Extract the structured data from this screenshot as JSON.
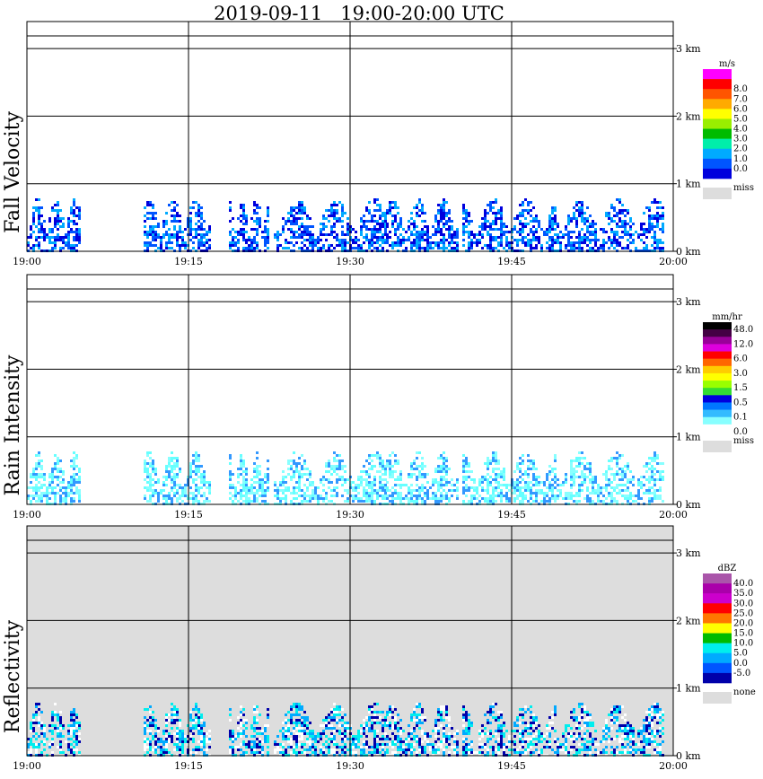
{
  "title": "2019-09-11   19:00-20:00 UTC",
  "chart_data": [
    {
      "type": "heatmap",
      "ylabel": "Fall Velocity",
      "unit": "m/s",
      "x_ticks": [
        "19:00",
        "19:15",
        "19:30",
        "19:45",
        "20:00"
      ],
      "y_ticks": [
        "0 km",
        "1 km",
        "2 km",
        "3 km"
      ],
      "ylim_km": [
        0,
        3.4
      ],
      "colorbar": [
        {
          "color": "#ff00ff",
          "label": ""
        },
        {
          "color": "#ff0000",
          "label": "8.0"
        },
        {
          "color": "#ff5500",
          "label": "7.0"
        },
        {
          "color": "#ffaa00",
          "label": "6.0"
        },
        {
          "color": "#ffff00",
          "label": "5.0"
        },
        {
          "color": "#99ee00",
          "label": "4.0"
        },
        {
          "color": "#00bb00",
          "label": "3.0"
        },
        {
          "color": "#00eeaa",
          "label": "2.0"
        },
        {
          "color": "#00aaff",
          "label": "1.0"
        },
        {
          "color": "#0055ff",
          "label": "0.0"
        },
        {
          "color": "#0000dd",
          "label": ""
        }
      ],
      "missing": {
        "color": "#dddddd",
        "label": "miss"
      },
      "background": "#ffffff",
      "precip_top_km": 1.0,
      "data_values": [
        0.5,
        1.5,
        1.0,
        0.5,
        2.0,
        1.0
      ],
      "cell_colors": [
        "#0000dd",
        "#0055ff",
        "#00aaff"
      ]
    },
    {
      "type": "heatmap",
      "ylabel": "Rain Intensity",
      "unit": "mm/hr",
      "x_ticks": [
        "19:00",
        "19:15",
        "19:30",
        "19:45",
        "20:00"
      ],
      "y_ticks": [
        "0 km",
        "1 km",
        "2 km",
        "3 km"
      ],
      "ylim_km": [
        0,
        3.4
      ],
      "colorbar": [
        {
          "color": "#000000",
          "label": "48.0"
        },
        {
          "color": "#440044",
          "label": ""
        },
        {
          "color": "#990099",
          "label": "12.0"
        },
        {
          "color": "#dd00dd",
          "label": ""
        },
        {
          "color": "#ff0000",
          "label": "6.0"
        },
        {
          "color": "#ff6600",
          "label": ""
        },
        {
          "color": "#ffcc00",
          "label": "3.0"
        },
        {
          "color": "#ffff00",
          "label": ""
        },
        {
          "color": "#99ff00",
          "label": "1.5"
        },
        {
          "color": "#33dd33",
          "label": ""
        },
        {
          "color": "#0000dd",
          "label": "0.5"
        },
        {
          "color": "#0077ff",
          "label": ""
        },
        {
          "color": "#33bbff",
          "label": "0.1"
        },
        {
          "color": "#88ffff",
          "label": ""
        },
        {
          "color": "#ffffff",
          "label": "0.0"
        }
      ],
      "missing": {
        "color": "#dddddd",
        "label": "miss"
      },
      "background": "#ffffff",
      "precip_top_km": 1.0,
      "data_values": [
        0.1,
        0.1,
        0.5,
        0.1,
        0.5,
        0.1
      ],
      "cell_colors": [
        "#66ffff",
        "#88ffff",
        "#3399ff"
      ]
    },
    {
      "type": "heatmap",
      "ylabel": "Reflectivity",
      "unit": "dBZ",
      "x_ticks": [
        "19:00",
        "19:15",
        "19:30",
        "19:45",
        "20:00"
      ],
      "y_ticks": [
        "0 km",
        "1 km",
        "2 km",
        "3 km"
      ],
      "ylim_km": [
        0,
        3.4
      ],
      "colorbar": [
        {
          "color": "#aa55aa",
          "label": "40.0"
        },
        {
          "color": "#aa00aa",
          "label": "35.0"
        },
        {
          "color": "#cc00cc",
          "label": "30.0"
        },
        {
          "color": "#ff0000",
          "label": "25.0"
        },
        {
          "color": "#ff7700",
          "label": "20.0"
        },
        {
          "color": "#ffff00",
          "label": "15.0"
        },
        {
          "color": "#00bb00",
          "label": "10.0"
        },
        {
          "color": "#00eeee",
          "label": "5.0"
        },
        {
          "color": "#00aaff",
          "label": "0.0"
        },
        {
          "color": "#0055ff",
          "label": "-5.0"
        },
        {
          "color": "#0000aa",
          "label": ""
        }
      ],
      "missing": {
        "color": "#dddddd",
        "label": "none"
      },
      "background": "#dddddd",
      "precip_top_km": 1.0,
      "data_values": [
        5.0,
        10.0,
        0.0,
        5.0,
        10.0,
        0.0
      ],
      "cell_colors": [
        "#0000aa",
        "#00aaff",
        "#00eeee",
        "#ffffff"
      ]
    }
  ]
}
